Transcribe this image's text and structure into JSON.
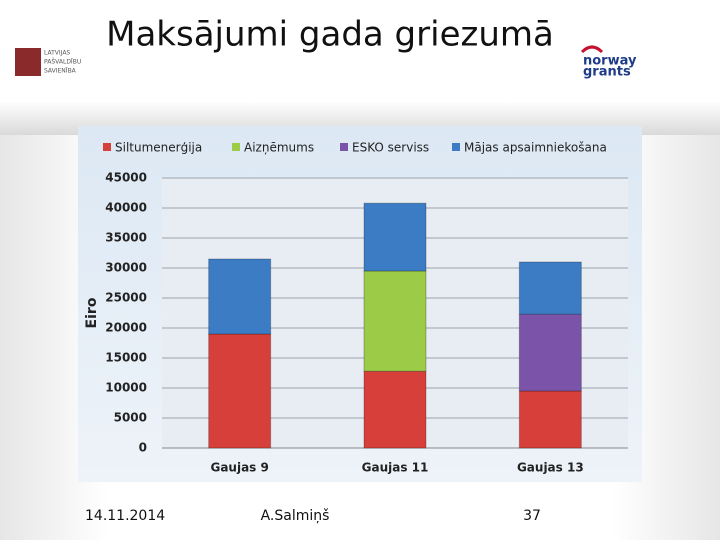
{
  "slide": {
    "title": "Maksājumi gada griezumā",
    "logo_left": [
      "LATVIJAS",
      "PAŠVALDĪBU",
      "SAVIENĪBA"
    ],
    "logo_right": [
      "norway",
      "grants"
    ],
    "footer": {
      "date": "14.11.2014",
      "author": "A.Salmiņš",
      "page": "37"
    }
  },
  "chart_data": {
    "type": "stacked-bar",
    "y_label": "Eiro",
    "categories": [
      "Gaujas 9",
      "Gaujas 11",
      "Gaujas 13"
    ],
    "series": [
      {
        "name": "Siltumenerģija",
        "color": "#d7403a",
        "values": [
          19000,
          12800,
          9500
        ]
      },
      {
        "name": "Aizņēmums",
        "color": "#9ccb48",
        "values": [
          null,
          16700,
          null
        ]
      },
      {
        "name": "ESKO serviss",
        "color": "#7b53a8",
        "values": [
          null,
          null,
          12800
        ]
      },
      {
        "name": "Mājas apsaimniekošana",
        "color": "#3b7cc5",
        "values": [
          12500,
          11300,
          8700
        ]
      }
    ],
    "ylim": [
      0,
      45000
    ],
    "yticks": [
      0,
      5000,
      10000,
      15000,
      20000,
      25000,
      30000,
      35000,
      40000,
      45000
    ],
    "grid": true
  }
}
